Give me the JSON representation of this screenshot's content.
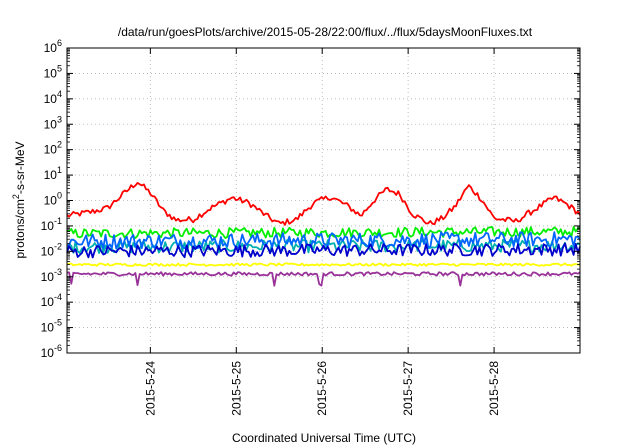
{
  "chart_data": {
    "type": "line",
    "title": "/data/run/goesPlots/archive/2015-05-28/22:00/flux/../flux/5daysMoonFluxes.txt",
    "xlabel": "Coordinated Universal Time (UTC)",
    "ylabel_parts": [
      "protons/cm",
      "2",
      "-s-sr-MeV"
    ],
    "y_scale": "log",
    "ylim": [
      1e-06,
      1000000.0
    ],
    "y_ticks": [
      {
        "base": "10",
        "exp": "-6",
        "value": 1e-06
      },
      {
        "base": "10",
        "exp": "-5",
        "value": 1e-05
      },
      {
        "base": "10",
        "exp": "-4",
        "value": 0.0001
      },
      {
        "base": "10",
        "exp": "-3",
        "value": 0.001
      },
      {
        "base": "10",
        "exp": "-2",
        "value": 0.01
      },
      {
        "base": "10",
        "exp": "-1",
        "value": 0.1
      },
      {
        "base": "10",
        "exp": "0",
        "value": 1
      },
      {
        "base": "10",
        "exp": "1",
        "value": 10
      },
      {
        "base": "10",
        "exp": "2",
        "value": 100
      },
      {
        "base": "10",
        "exp": "3",
        "value": 1000
      },
      {
        "base": "10",
        "exp": "4",
        "value": 10000
      },
      {
        "base": "10",
        "exp": "5",
        "value": 100000
      },
      {
        "base": "10",
        "exp": "6",
        "value": 1000000
      }
    ],
    "x_unit": "days from 2015-05-23 00:00 UTC",
    "xlim": [
      0.03,
      6.0
    ],
    "x_ticks": [
      {
        "label": "2015-5-24",
        "value": 1.0
      },
      {
        "label": "2015-5-25",
        "value": 2.0
      },
      {
        "label": "2015-5-26",
        "value": 3.0
      },
      {
        "label": "2015-5-27",
        "value": 4.0
      },
      {
        "label": "2015-5-28",
        "value": 5.0
      }
    ],
    "grid": true,
    "legend": "none",
    "series": [
      {
        "color": "#ff0000",
        "anchors": [
          [
            0.03,
            0.25
          ],
          [
            0.3,
            0.35
          ],
          [
            0.5,
            0.5
          ],
          [
            0.7,
            2.0
          ],
          [
            0.85,
            5.5
          ],
          [
            1.0,
            2.0
          ],
          [
            1.15,
            0.4
          ],
          [
            1.3,
            0.17
          ],
          [
            1.5,
            0.18
          ],
          [
            1.7,
            0.5
          ],
          [
            1.95,
            1.3
          ],
          [
            2.15,
            0.8
          ],
          [
            2.35,
            0.25
          ],
          [
            2.5,
            0.12
          ],
          [
            2.7,
            0.18
          ],
          [
            2.9,
            0.8
          ],
          [
            3.1,
            1.4
          ],
          [
            3.3,
            0.6
          ],
          [
            3.45,
            0.25
          ],
          [
            3.6,
            1.0
          ],
          [
            3.75,
            2.8
          ],
          [
            3.9,
            1.8
          ],
          [
            4.05,
            0.3
          ],
          [
            4.25,
            0.12
          ],
          [
            4.4,
            0.2
          ],
          [
            4.55,
            0.6
          ],
          [
            4.7,
            3.8
          ],
          [
            4.85,
            1.2
          ],
          [
            5.0,
            0.2
          ],
          [
            5.25,
            0.15
          ],
          [
            5.5,
            0.5
          ],
          [
            5.7,
            1.3
          ],
          [
            5.85,
            0.7
          ],
          [
            6.0,
            0.3
          ]
        ],
        "noise": 0.12
      },
      {
        "color": "#00ee00",
        "anchors": [
          [
            0.03,
            0.05
          ],
          [
            6.0,
            0.06
          ]
        ],
        "noise": 0.2
      },
      {
        "color": "#00b0b0",
        "anchors": [
          [
            0.03,
            0.015
          ],
          [
            6.0,
            0.017
          ]
        ],
        "noise": 0.25
      },
      {
        "color": "#0066ff",
        "anchors": [
          [
            0.03,
            0.025
          ],
          [
            6.0,
            0.03
          ]
        ],
        "noise": 0.3
      },
      {
        "color": "#0000cc",
        "anchors": [
          [
            0.03,
            0.01
          ],
          [
            6.0,
            0.012
          ]
        ],
        "noise": 0.25
      },
      {
        "color": "#ffff00",
        "anchors": [
          [
            0.03,
            0.003
          ],
          [
            6.0,
            0.003
          ]
        ],
        "noise": 0.05
      },
      {
        "color": "#993399",
        "anchors": [
          [
            0.03,
            0.0013
          ],
          [
            6.0,
            0.0013
          ]
        ],
        "noise": 0.07,
        "dips": [
          0.07,
          0.85,
          2.45,
          2.98,
          4.6
        ]
      }
    ]
  }
}
